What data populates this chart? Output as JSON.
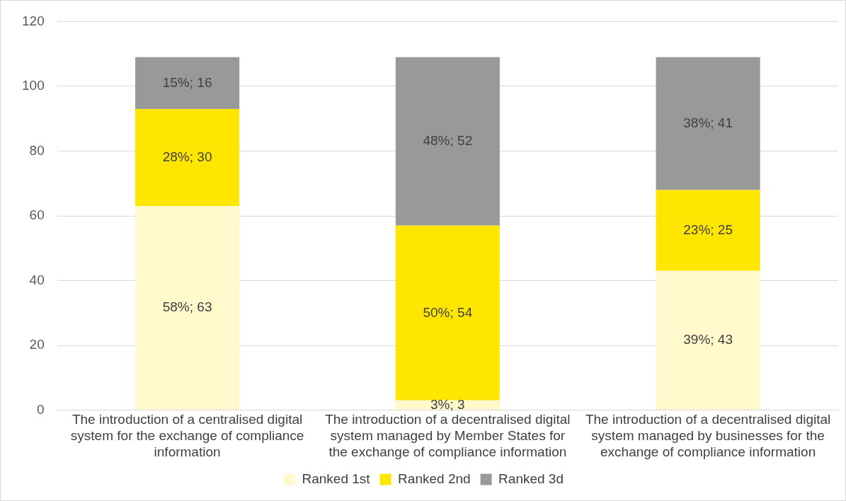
{
  "chart_data": {
    "type": "bar",
    "stacked": true,
    "categories": [
      "The introduction of a centralised digital system for the exchange of compliance information",
      "The introduction of a decentralised digital system managed by Member States for the exchange of compliance information",
      "The introduction of a decentralised digital system managed by businesses for the exchange of compliance information"
    ],
    "series": [
      {
        "name": "Ranked 1st",
        "color": "#fff9cc",
        "values": [
          63,
          3,
          43
        ],
        "value_labels": [
          "58%; 63",
          "3%; 3",
          "39%; 43"
        ]
      },
      {
        "name": "Ranked 2nd",
        "color": "#ffe600",
        "values": [
          30,
          54,
          25
        ],
        "value_labels": [
          "28%; 30",
          "50%; 54",
          "23%; 25"
        ]
      },
      {
        "name": "Ranked 3d",
        "color": "#999999",
        "values": [
          16,
          52,
          41
        ],
        "value_labels": [
          "15%; 16",
          "48%; 52",
          "38%; 41"
        ]
      }
    ],
    "ylim": [
      0,
      120
    ],
    "yticks": [
      0,
      20,
      40,
      60,
      80,
      100,
      120
    ],
    "grid": "y",
    "legend": "bottom"
  }
}
